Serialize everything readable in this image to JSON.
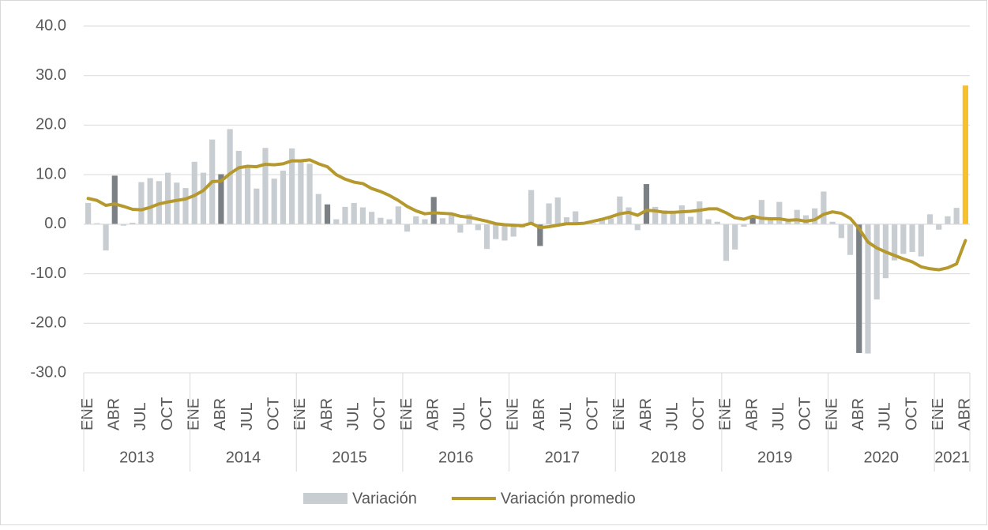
{
  "chart_data": {
    "type": "bar_line",
    "categories": [
      "ENE",
      null,
      null,
      "ABR",
      null,
      null,
      "JUL",
      null,
      null,
      "OCT",
      null,
      null,
      "ENE",
      null,
      null,
      "ABR",
      null,
      null,
      "JUL",
      null,
      null,
      "OCT",
      null,
      null,
      "ENE",
      null,
      null,
      "ABR",
      null,
      null,
      "JUL",
      null,
      null,
      "OCT",
      null,
      null,
      "ENE",
      null,
      null,
      "ABR",
      null,
      null,
      "JUL",
      null,
      null,
      "OCT",
      null,
      null,
      "ENE",
      null,
      null,
      "ABR",
      null,
      null,
      "JUL",
      null,
      null,
      "OCT",
      null,
      null,
      "ENE",
      null,
      null,
      "ABR",
      null,
      null,
      "JUL",
      null,
      null,
      "OCT",
      null,
      null,
      "ENE",
      null,
      null,
      "ABR",
      null,
      null,
      "JUL",
      null,
      null,
      "OCT",
      null,
      null,
      "ENE",
      null,
      null,
      "ABR",
      null,
      null,
      "JUL",
      null,
      null,
      "OCT",
      null,
      null,
      "ENE",
      null,
      null,
      "ABR"
    ],
    "year_groups": [
      "2013",
      "2014",
      "2015",
      "2016",
      "2017",
      "2018",
      "2019",
      "2020",
      "2021"
    ],
    "series": [
      {
        "name": "Variación",
        "kind": "bar",
        "color": "#c8cdd2",
        "values": [
          4.3,
          0.2,
          -5.3,
          9.8,
          -0.3,
          0.3,
          8.5,
          9.3,
          8.7,
          10.4,
          8.4,
          7.3,
          12.6,
          10.4,
          17.1,
          10.1,
          19.2,
          14.8,
          11.5,
          7.2,
          15.4,
          9.2,
          10.8,
          15.3,
          12.9,
          12.2,
          6.1,
          4.0,
          1.0,
          3.5,
          4.3,
          3.4,
          2.5,
          1.3,
          1.0,
          3.6,
          -1.5,
          1.6,
          1.0,
          5.5,
          1.2,
          1.8,
          -1.7,
          2.0,
          -1.2,
          -5.0,
          -3.0,
          -3.3,
          -2.5,
          -0.7,
          6.9,
          -4.4,
          4.2,
          5.4,
          1.4,
          2.6,
          0.3,
          0.2,
          0.9,
          1.2,
          5.6,
          3.4,
          -1.2,
          8.1,
          3.5,
          2.8,
          2.5,
          3.8,
          1.5,
          4.6,
          1.0,
          0.5,
          -7.4,
          -5.1,
          -0.5,
          1.5,
          4.9,
          0.8,
          4.5,
          1.0,
          2.9,
          1.8,
          3.2,
          6.6,
          0.5,
          -2.8,
          -6.2,
          -26.0,
          -26.1,
          -15.2,
          -10.9,
          -7.3,
          -6.0,
          -5.6,
          -6.5,
          2.0,
          -1.1,
          1.6,
          3.3,
          28.0
        ],
        "colors": [
          "#c8cdd2",
          "#c8cdd2",
          "#c8cdd2",
          "#7b8085",
          "#c8cdd2",
          "#c8cdd2",
          "#c8cdd2",
          "#c8cdd2",
          "#c8cdd2",
          "#c8cdd2",
          "#c8cdd2",
          "#c8cdd2",
          "#c8cdd2",
          "#c8cdd2",
          "#c8cdd2",
          "#7b8085",
          "#c8cdd2",
          "#c8cdd2",
          "#c8cdd2",
          "#c8cdd2",
          "#c8cdd2",
          "#c8cdd2",
          "#c8cdd2",
          "#c8cdd2",
          "#c8cdd2",
          "#c8cdd2",
          "#c8cdd2",
          "#7b8085",
          "#c8cdd2",
          "#c8cdd2",
          "#c8cdd2",
          "#c8cdd2",
          "#c8cdd2",
          "#c8cdd2",
          "#c8cdd2",
          "#c8cdd2",
          "#c8cdd2",
          "#c8cdd2",
          "#c8cdd2",
          "#7b8085",
          "#c8cdd2",
          "#c8cdd2",
          "#c8cdd2",
          "#c8cdd2",
          "#c8cdd2",
          "#c8cdd2",
          "#c8cdd2",
          "#c8cdd2",
          "#c8cdd2",
          "#c8cdd2",
          "#c8cdd2",
          "#7b8085",
          "#c8cdd2",
          "#c8cdd2",
          "#c8cdd2",
          "#c8cdd2",
          "#c8cdd2",
          "#c8cdd2",
          "#c8cdd2",
          "#c8cdd2",
          "#c8cdd2",
          "#c8cdd2",
          "#c8cdd2",
          "#7b8085",
          "#c8cdd2",
          "#c8cdd2",
          "#c8cdd2",
          "#c8cdd2",
          "#c8cdd2",
          "#c8cdd2",
          "#c8cdd2",
          "#c8cdd2",
          "#c8cdd2",
          "#c8cdd2",
          "#c8cdd2",
          "#7b8085",
          "#c8cdd2",
          "#c8cdd2",
          "#c8cdd2",
          "#c8cdd2",
          "#c8cdd2",
          "#c8cdd2",
          "#c8cdd2",
          "#c8cdd2",
          "#c8cdd2",
          "#c8cdd2",
          "#c8cdd2",
          "#7b8085",
          "#c8cdd2",
          "#c8cdd2",
          "#c8cdd2",
          "#c8cdd2",
          "#c8cdd2",
          "#c8cdd2",
          "#c8cdd2",
          "#c8cdd2",
          "#c8cdd2",
          "#c8cdd2",
          "#c8cdd2",
          "#f6c12c"
        ]
      },
      {
        "name": "Variación promedio",
        "kind": "line",
        "color": "#b5992e",
        "values": [
          5.2,
          4.8,
          3.8,
          4.1,
          3.6,
          3.0,
          2.9,
          3.4,
          4.1,
          4.5,
          4.8,
          5.1,
          5.8,
          6.8,
          8.6,
          8.7,
          10.2,
          11.4,
          11.7,
          11.6,
          12.1,
          12.0,
          12.2,
          12.8,
          12.8,
          13.0,
          12.2,
          11.6,
          10.0,
          9.1,
          8.5,
          8.2,
          7.2,
          6.6,
          5.8,
          4.8,
          3.6,
          2.7,
          2.1,
          2.3,
          2.2,
          2.1,
          1.6,
          1.4,
          1.0,
          0.6,
          0.1,
          -0.1,
          -0.2,
          -0.3,
          0.2,
          -0.7,
          -0.5,
          -0.2,
          0.1,
          0.1,
          0.2,
          0.6,
          1.0,
          1.5,
          2.1,
          2.4,
          1.8,
          2.8,
          2.7,
          2.4,
          2.4,
          2.5,
          2.6,
          2.8,
          3.1,
          3.1,
          2.3,
          1.3,
          1.0,
          1.6,
          1.2,
          1.1,
          1.1,
          0.8,
          0.9,
          0.6,
          0.9,
          2.0,
          2.5,
          2.2,
          1.2,
          -0.9,
          -3.6,
          -4.8,
          -5.6,
          -6.3,
          -7.0,
          -7.6,
          -8.6,
          -9.0,
          -9.2,
          -8.8,
          -8.0,
          -3.3
        ]
      }
    ],
    "ylim": [
      -30,
      40
    ],
    "yticks": [
      {
        "value": -30,
        "label": "-30.0"
      },
      {
        "value": -20,
        "label": "-20.0"
      },
      {
        "value": -10,
        "label": "-10.0"
      },
      {
        "value": 0,
        "label": "0.0"
      },
      {
        "value": 10,
        "label": "10.0"
      },
      {
        "value": 20,
        "label": "20.0"
      },
      {
        "value": 30,
        "label": "30.0"
      },
      {
        "value": 40,
        "label": "40.0"
      }
    ],
    "grid": true,
    "legend": "bottom"
  }
}
